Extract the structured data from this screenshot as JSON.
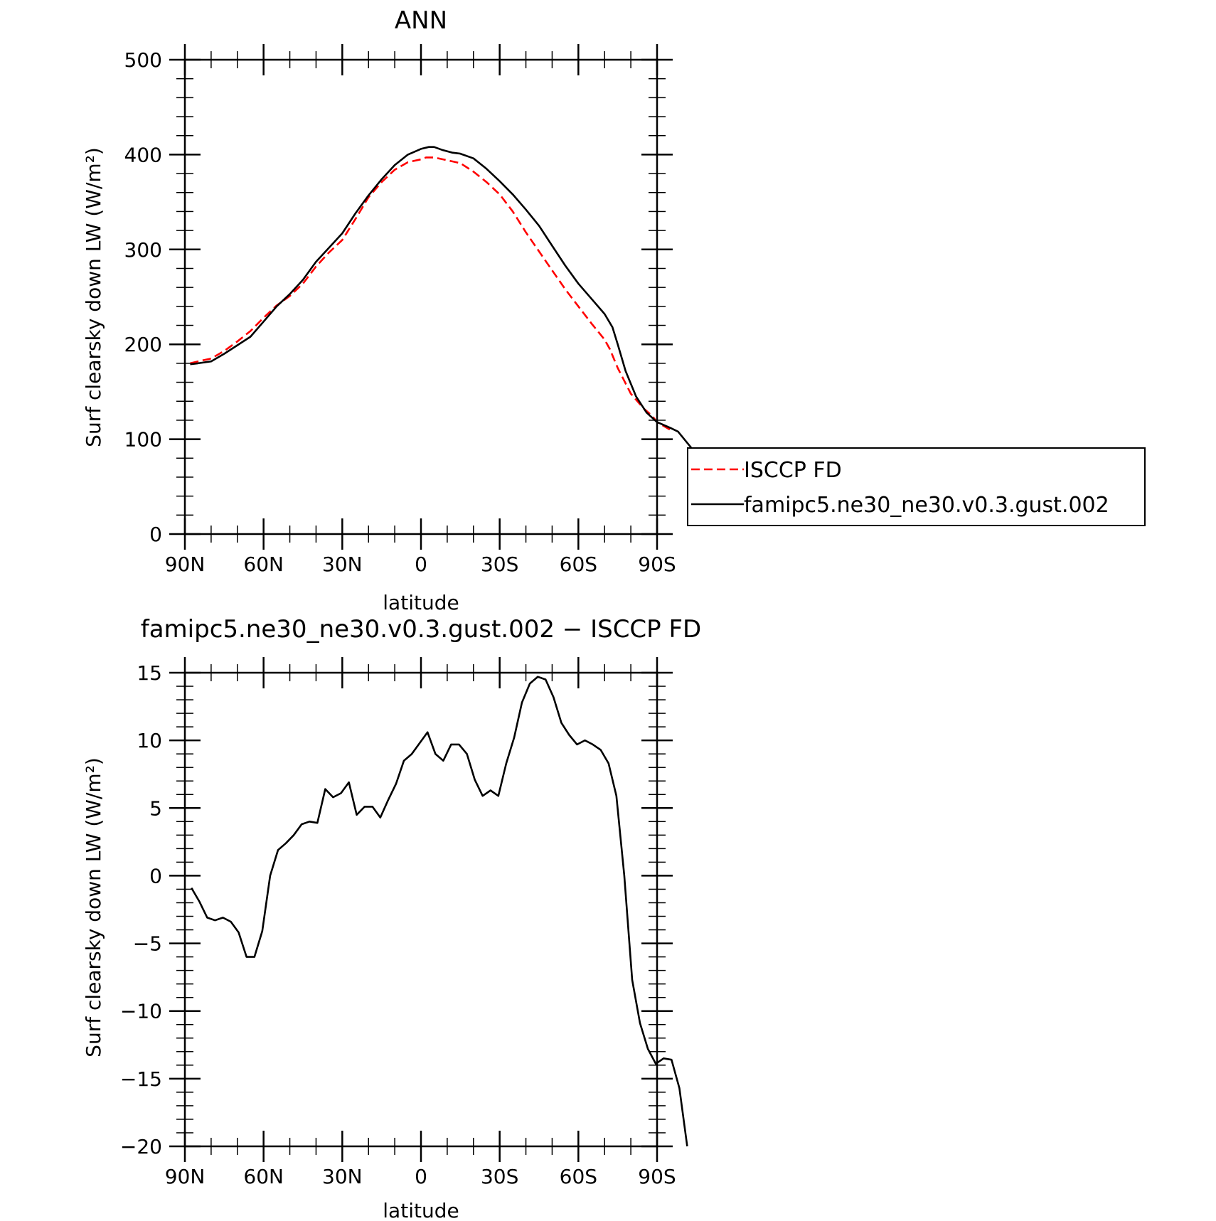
{
  "chart_data": [
    {
      "type": "line",
      "title": "ANN",
      "xlabel": "latitude",
      "ylabel": "Surf clearsky down LW (W/m²)",
      "xlim": [
        90,
        -90
      ],
      "ylim": [
        0,
        500
      ],
      "x_ticks": [
        90,
        60,
        30,
        0,
        -30,
        -60,
        -90
      ],
      "x_tick_labels": [
        "90N",
        "60N",
        "30N",
        "0",
        "30S",
        "60S",
        "90S"
      ],
      "y_ticks": [
        0,
        100,
        200,
        300,
        400,
        500
      ],
      "y_tick_labels": [
        "0",
        "100",
        "200",
        "300",
        "400",
        "500"
      ],
      "legend": "right",
      "series": [
        {
          "name": "ISCCP FD",
          "color": "#ff0000",
          "dash": true,
          "points": [
            [
              88,
              180
            ],
            [
              85,
              182
            ],
            [
              80,
              185
            ],
            [
              75,
              193
            ],
            [
              70,
              203
            ],
            [
              65,
              214
            ],
            [
              60,
              228
            ],
            [
              55,
              241
            ],
            [
              50,
              251
            ],
            [
              45,
              264
            ],
            [
              40,
              282
            ],
            [
              35,
              297
            ],
            [
              30,
              310
            ],
            [
              25,
              332
            ],
            [
              20,
              355
            ],
            [
              15,
              371
            ],
            [
              10,
              384
            ],
            [
              5,
              392
            ],
            [
              0,
              395
            ],
            [
              -2,
              397
            ],
            [
              -5,
              397
            ],
            [
              -10,
              394
            ],
            [
              -15,
              391
            ],
            [
              -20,
              382
            ],
            [
              -25,
              371
            ],
            [
              -30,
              358
            ],
            [
              -35,
              340
            ],
            [
              -40,
              318
            ],
            [
              -45,
              298
            ],
            [
              -50,
              278
            ],
            [
              -55,
              258
            ],
            [
              -60,
              240
            ],
            [
              -65,
              222
            ],
            [
              -70,
              205
            ],
            [
              -72,
              195
            ],
            [
              -75,
              175
            ],
            [
              -80,
              148
            ],
            [
              -85,
              132
            ],
            [
              -88,
              125
            ],
            [
              -90,
              118
            ],
            [
              -95,
              110
            ]
          ]
        },
        {
          "name": "famipc5.ne30_ne30.v0.3.gust.002",
          "color": "#000000",
          "dash": false,
          "points": [
            [
              88,
              179
            ],
            [
              85,
              180
            ],
            [
              80,
              182
            ],
            [
              75,
              190
            ],
            [
              70,
              199
            ],
            [
              65,
              208
            ],
            [
              60,
              224
            ],
            [
              55,
              240
            ],
            [
              50,
              253
            ],
            [
              45,
              268
            ],
            [
              40,
              287
            ],
            [
              35,
              302
            ],
            [
              30,
              317
            ],
            [
              25,
              338
            ],
            [
              20,
              357
            ],
            [
              15,
              374
            ],
            [
              10,
              389
            ],
            [
              5,
              400
            ],
            [
              0,
              406
            ],
            [
              -3,
              408
            ],
            [
              -5,
              408
            ],
            [
              -8,
              405
            ],
            [
              -12,
              402
            ],
            [
              -15,
              401
            ],
            [
              -20,
              396
            ],
            [
              -25,
              385
            ],
            [
              -30,
              372
            ],
            [
              -35,
              358
            ],
            [
              -40,
              342
            ],
            [
              -45,
              325
            ],
            [
              -50,
              304
            ],
            [
              -55,
              283
            ],
            [
              -60,
              264
            ],
            [
              -65,
              248
            ],
            [
              -70,
              232
            ],
            [
              -73,
              218
            ],
            [
              -75,
              200
            ],
            [
              -78,
              172
            ],
            [
              -82,
              145
            ],
            [
              -86,
              128
            ],
            [
              -90,
              118
            ],
            [
              -95,
              112
            ],
            [
              -98,
              108
            ],
            [
              -103,
              91
            ]
          ]
        }
      ]
    },
    {
      "type": "line",
      "title": "famipc5.ne30_ne30.v0.3.gust.002 − ISCCP FD",
      "xlabel": "latitude",
      "ylabel": "Surf clearsky down LW (W/m²)",
      "xlim": [
        90,
        -90
      ],
      "ylim": [
        -20,
        15
      ],
      "x_ticks": [
        90,
        60,
        30,
        0,
        -30,
        -60,
        -90
      ],
      "x_tick_labels": [
        "90N",
        "60N",
        "30N",
        "0",
        "30S",
        "60S",
        "90S"
      ],
      "y_ticks": [
        -20,
        -15,
        -10,
        -5,
        0,
        5,
        10,
        15
      ],
      "y_tick_labels": [
        "−20",
        "−15",
        "−10",
        "−5",
        "0",
        "5",
        "10",
        "15"
      ],
      "series": [
        {
          "color": "#000000",
          "points": [
            [
              87.5,
              -0.9
            ],
            [
              84.5,
              -1.9
            ],
            [
              81.5,
              -3.1
            ],
            [
              78.5,
              -3.3
            ],
            [
              75.5,
              -3.1
            ],
            [
              72.5,
              -3.4
            ],
            [
              69.5,
              -4.2
            ],
            [
              66.5,
              -6.0
            ],
            [
              63.5,
              -6.0
            ],
            [
              60.5,
              -4.1
            ],
            [
              57.5,
              0.0
            ],
            [
              54.5,
              1.9
            ],
            [
              51.5,
              2.4
            ],
            [
              48.5,
              3.0
            ],
            [
              45.5,
              3.8
            ],
            [
              42.5,
              4.0
            ],
            [
              39.5,
              3.9
            ],
            [
              36.5,
              6.4
            ],
            [
              33.5,
              5.8
            ],
            [
              30.5,
              6.1
            ],
            [
              27.5,
              6.9
            ],
            [
              24.5,
              4.5
            ],
            [
              21.5,
              5.1
            ],
            [
              18.5,
              5.1
            ],
            [
              15.5,
              4.3
            ],
            [
              12.5,
              5.6
            ],
            [
              9.5,
              6.8
            ],
            [
              6.5,
              8.5
            ],
            [
              3.5,
              9.0
            ],
            [
              0.5,
              9.8
            ],
            [
              -2.5,
              10.6
            ],
            [
              -5.5,
              9.0
            ],
            [
              -8.5,
              8.5
            ],
            [
              -11.5,
              9.7
            ],
            [
              -14.5,
              9.7
            ],
            [
              -17.5,
              9.0
            ],
            [
              -20.5,
              7.1
            ],
            [
              -23.5,
              5.9
            ],
            [
              -26.5,
              6.3
            ],
            [
              -29.5,
              5.9
            ],
            [
              -32.5,
              8.3
            ],
            [
              -35.5,
              10.2
            ],
            [
              -38.5,
              12.8
            ],
            [
              -41.5,
              14.2
            ],
            [
              -44.5,
              14.7
            ],
            [
              -47.5,
              14.5
            ],
            [
              -50.5,
              13.2
            ],
            [
              -53.5,
              11.3
            ],
            [
              -56.5,
              10.4
            ],
            [
              -59.5,
              9.7
            ],
            [
              -62.5,
              10.0
            ],
            [
              -65.5,
              9.7
            ],
            [
              -68.5,
              9.3
            ],
            [
              -71.5,
              8.3
            ],
            [
              -74.5,
              5.9
            ],
            [
              -77.5,
              0.0
            ],
            [
              -80.5,
              -7.7
            ],
            [
              -83.5,
              -10.9
            ],
            [
              -86.5,
              -12.8
            ],
            [
              -89.5,
              -13.9
            ],
            [
              -92.5,
              -13.5
            ],
            [
              -95.5,
              -13.6
            ],
            [
              -98.5,
              -15.7
            ],
            [
              -101.5,
              -20.0
            ]
          ]
        }
      ]
    }
  ]
}
